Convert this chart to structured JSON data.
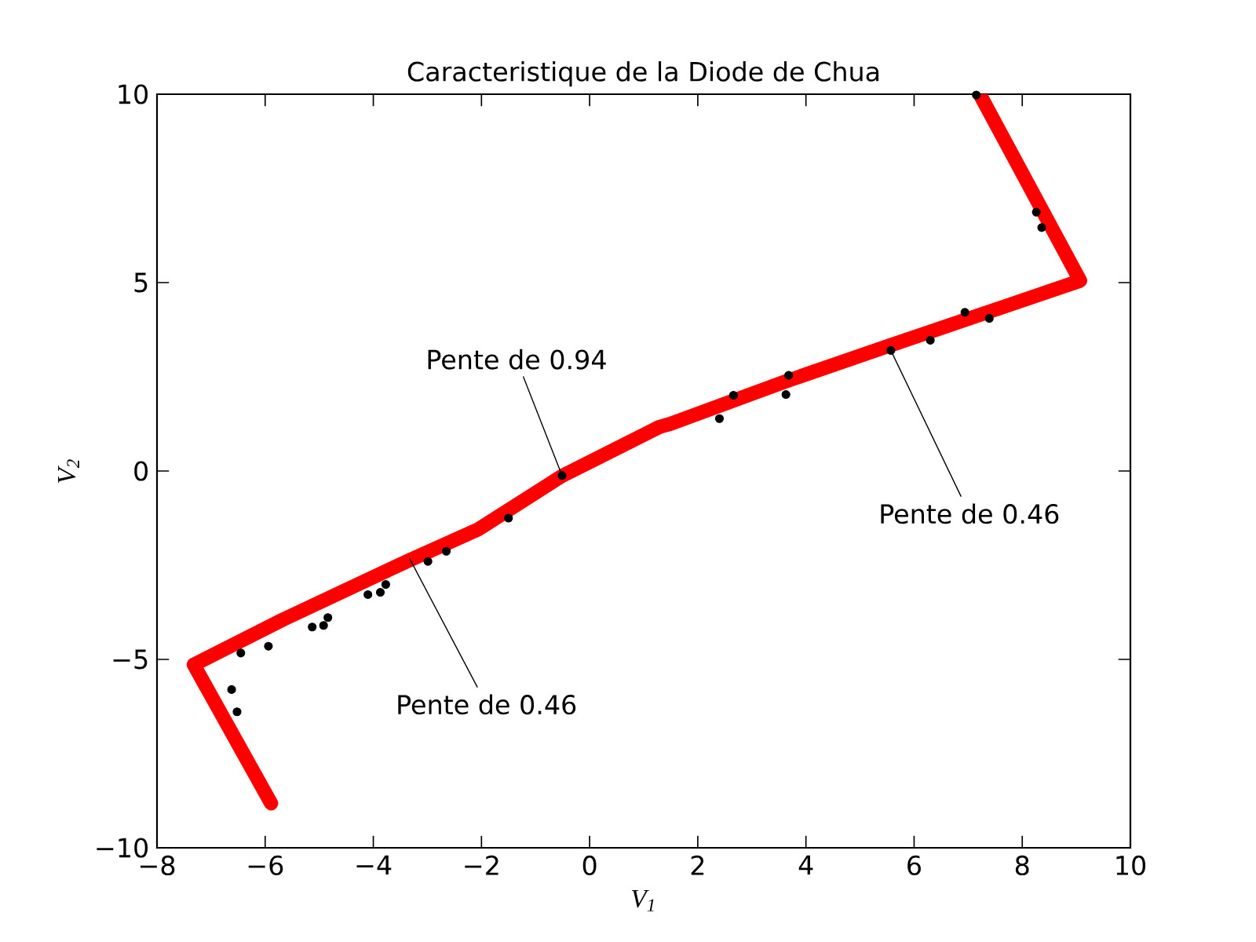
{
  "chart_data": {
    "type": "scatter",
    "title": "Caracteristique de la Diode de Chua",
    "xlabel": "V$_{1}$",
    "ylabel": "V$_{2}$",
    "xlim": [
      -8,
      10
    ],
    "ylim": [
      -10,
      10
    ],
    "xticks": [
      {
        "value": -8,
        "label": "−8"
      },
      {
        "value": -6,
        "label": "−6"
      },
      {
        "value": -4,
        "label": "−4"
      },
      {
        "value": -2,
        "label": "−2"
      },
      0,
      2,
      4,
      6,
      8,
      10
    ],
    "yticks": [
      {
        "value": -10,
        "label": "−10"
      },
      {
        "value": -5,
        "label": "−5"
      },
      0,
      5,
      10
    ],
    "series": [
      {
        "type": "line",
        "color": "#ff0000",
        "line_style": "solid",
        "x": [
          -5.89,
          -7.32,
          -5.68,
          -3.35,
          -2.05,
          -0.51,
          1.29,
          1.49,
          3.61,
          5.55,
          9.07,
          7.24
        ],
        "values": [
          -8.82,
          -5.14,
          -3.95,
          -2.38,
          -1.54,
          -0.13,
          1.17,
          1.25,
          2.37,
          3.33,
          5.05,
          9.93
        ]
      },
      {
        "color": "#000000",
        "marker": "circle",
        "x": [
          -6.62,
          -6.52,
          -6.45,
          -5.94,
          -5.13,
          -4.92,
          -4.84,
          -4.1,
          -3.87,
          -3.77,
          -2.99,
          -2.65,
          -1.5,
          -0.51,
          2.4,
          2.66,
          3.68,
          3.63,
          5.57,
          6.3,
          6.94,
          7.39,
          7.15,
          8.36,
          8.26
        ],
        "values": [
          -5.8,
          -6.39,
          -4.83,
          -4.65,
          -4.14,
          -4.1,
          -3.89,
          -3.28,
          -3.22,
          -3.01,
          -2.4,
          -2.13,
          -1.25,
          -0.12,
          1.39,
          2.01,
          2.54,
          2.03,
          3.2,
          3.47,
          4.21,
          4.05,
          9.98,
          6.46,
          6.87
        ]
      }
    ],
    "annotations": [
      {
        "text": "Pente de 0.94",
        "x": -0.51,
        "y": -0.12
      },
      {
        "text": "Pente de 0.46",
        "x": 5.57,
        "y": 3.2
      },
      {
        "text": "Pente de 0.46",
        "x": -3.33,
        "y": -2.32
      }
    ]
  }
}
